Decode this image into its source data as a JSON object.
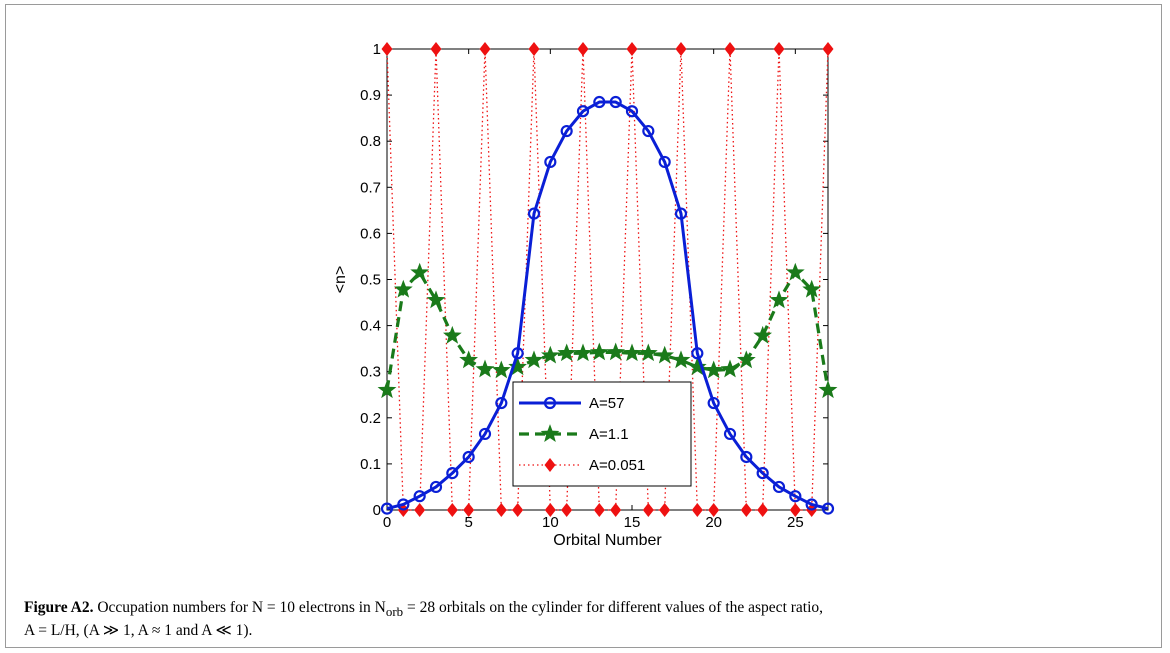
{
  "chart_data": {
    "type": "line",
    "xlabel": "Orbital Number",
    "ylabel": "<n>",
    "xlim": [
      0,
      27
    ],
    "ylim": [
      0,
      1
    ],
    "xticks": [
      "0",
      "5",
      "10",
      "15",
      "20",
      "25"
    ],
    "yticks": [
      "0",
      "0.1",
      "0.2",
      "0.3",
      "0.4",
      "0.5",
      "0.6",
      "0.7",
      "0.8",
      "0.9",
      "1"
    ],
    "grid": false,
    "legend_position": "bottom-center",
    "x": [
      0,
      1,
      2,
      3,
      4,
      5,
      6,
      7,
      8,
      9,
      10,
      11,
      12,
      13,
      14,
      15,
      16,
      17,
      18,
      19,
      20,
      21,
      22,
      23,
      24,
      25,
      26,
      27
    ],
    "series": [
      {
        "name": "A=57",
        "color": "#0a1fd6",
        "line": "solid",
        "marker": "circle",
        "values": [
          0.003,
          0.012,
          0.03,
          0.05,
          0.08,
          0.115,
          0.165,
          0.232,
          0.34,
          0.643,
          0.755,
          0.822,
          0.865,
          0.885,
          0.885,
          0.865,
          0.822,
          0.755,
          0.643,
          0.34,
          0.232,
          0.165,
          0.115,
          0.08,
          0.05,
          0.03,
          0.012,
          0.003
        ]
      },
      {
        "name": "A=1.1",
        "color": "#1a7a1a",
        "line": "dashed",
        "marker": "star",
        "values": [
          0.26,
          0.478,
          0.515,
          0.455,
          0.378,
          0.325,
          0.305,
          0.303,
          0.31,
          0.325,
          0.335,
          0.34,
          0.34,
          0.342,
          0.342,
          0.34,
          0.34,
          0.335,
          0.325,
          0.31,
          0.303,
          0.305,
          0.325,
          0.378,
          0.455,
          0.515,
          0.478,
          0.26
        ]
      },
      {
        "name": "A=0.051",
        "color": "#ee1111",
        "line": "dotted",
        "marker": "diamond",
        "values": [
          1,
          0,
          0,
          1,
          0,
          0,
          1,
          0,
          0,
          1,
          0,
          0,
          1,
          0,
          0,
          1,
          0,
          0,
          1,
          0,
          0,
          1,
          0,
          0,
          1,
          0,
          0,
          1
        ]
      }
    ]
  },
  "caption": {
    "label": "Figure A2.",
    "line1": "Occupation numbers for N = 10 electrons in N",
    "sub_orb": "orb",
    "line1_rest": " = 28 orbitals on the cylinder for different values of the aspect ratio,",
    "line2": "A = L/H, (A ≫ 1, A ≈ 1 and A ≪ 1)."
  }
}
